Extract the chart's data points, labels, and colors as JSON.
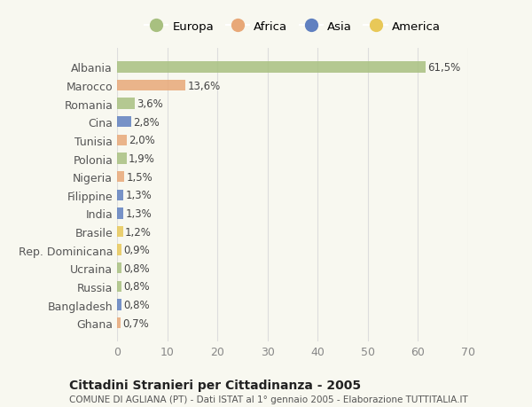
{
  "countries": [
    "Albania",
    "Marocco",
    "Romania",
    "Cina",
    "Tunisia",
    "Polonia",
    "Nigeria",
    "Filippine",
    "India",
    "Brasile",
    "Rep. Dominicana",
    "Ucraina",
    "Russia",
    "Bangladesh",
    "Ghana"
  ],
  "values": [
    61.5,
    13.6,
    3.6,
    2.8,
    2.0,
    1.9,
    1.5,
    1.3,
    1.3,
    1.2,
    0.9,
    0.8,
    0.8,
    0.8,
    0.7
  ],
  "labels": [
    "61,5%",
    "13,6%",
    "3,6%",
    "2,8%",
    "2,0%",
    "1,9%",
    "1,5%",
    "1,3%",
    "1,3%",
    "1,2%",
    "0,9%",
    "0,8%",
    "0,8%",
    "0,8%",
    "0,7%"
  ],
  "continents": [
    "Europa",
    "Africa",
    "Europa",
    "Asia",
    "Africa",
    "Europa",
    "Africa",
    "Asia",
    "Asia",
    "America",
    "America",
    "Europa",
    "Europa",
    "Asia",
    "Africa"
  ],
  "continent_colors": {
    "Europa": "#a8c080",
    "Africa": "#e8a878",
    "Asia": "#6080c0",
    "America": "#e8c858"
  },
  "legend_order": [
    "Europa",
    "Africa",
    "Asia",
    "America"
  ],
  "title": "Cittadini Stranieri per Cittadinanza - 2005",
  "subtitle": "COMUNE DI AGLIANA (PT) - Dati ISTAT al 1° gennaio 2005 - Elaborazione TUTTITALIA.IT",
  "xlim": [
    0,
    70
  ],
  "xticks": [
    0,
    10,
    20,
    30,
    40,
    50,
    60,
    70
  ],
  "background_color": "#f8f8f0",
  "grid_color": "#dddddd"
}
